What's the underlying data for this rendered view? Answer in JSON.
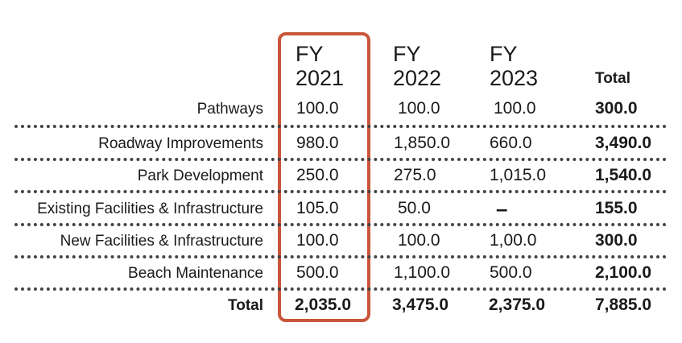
{
  "table": {
    "headers": [
      {
        "line1": "FY",
        "line2": "2021"
      },
      {
        "line1": "FY",
        "line2": "2022"
      },
      {
        "line1": "FY",
        "line2": "2023"
      }
    ],
    "total_header": "Total",
    "rows": [
      {
        "label": "Pathways",
        "values": [
          "100.0",
          "100.0",
          "100.0"
        ],
        "total": "300.0"
      },
      {
        "label": "Roadway Improvements",
        "values": [
          "980.0",
          "1,850.0",
          "660.0"
        ],
        "total": "3,490.0"
      },
      {
        "label": "Park Development",
        "values": [
          "250.0",
          "275.0",
          "1,015.0"
        ],
        "total": "1,540.0"
      },
      {
        "label": "Existing Facilities & Infrastructure",
        "values": [
          "105.0",
          "50.0",
          "–"
        ],
        "total": "155.0"
      },
      {
        "label": "New Facilities & Infrastructure",
        "values": [
          "100.0",
          "100.0",
          "1,00.0"
        ],
        "total": "300.0"
      },
      {
        "label": "Beach Maintenance",
        "values": [
          "500.0",
          "1,100.0",
          "500.0"
        ],
        "total": "2,100.0"
      }
    ],
    "total_row": {
      "label": "Total",
      "values": [
        "2,035.0",
        "3,475.0",
        "2,375.0"
      ],
      "total": "7,885.0"
    }
  },
  "colors": {
    "highlight": "#c9563a",
    "text": "#1a1a1a",
    "dots": "#444444"
  }
}
